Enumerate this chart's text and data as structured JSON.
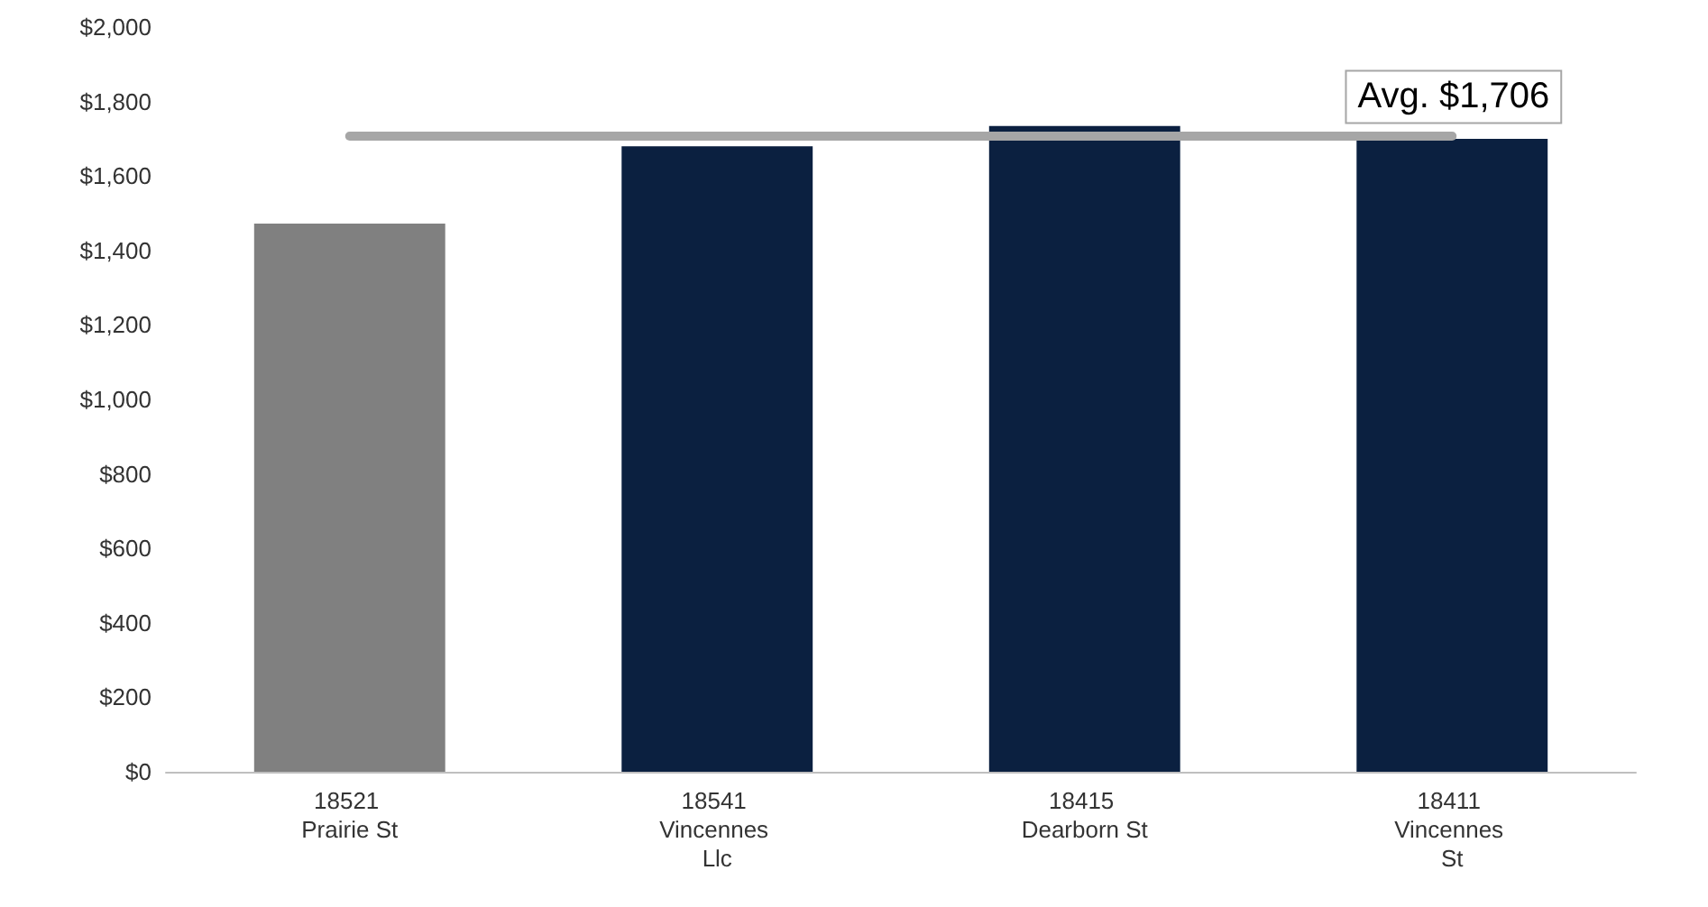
{
  "chart_data": {
    "type": "bar",
    "categories": [
      "18521 Prairie St",
      "18541 Vincennes Llc",
      "18415 Dearborn St",
      "18411 Vincennes St"
    ],
    "values": [
      1472,
      1680,
      1734,
      1700
    ],
    "colors": [
      "#808080",
      "#0b2040",
      "#0b2040",
      "#0b2040"
    ],
    "ylim": [
      0,
      2000
    ],
    "yticks": [
      {
        "value": 0,
        "label": "$0"
      },
      {
        "value": 200,
        "label": "$200"
      },
      {
        "value": 400,
        "label": "$400"
      },
      {
        "value": 600,
        "label": "$600"
      },
      {
        "value": 800,
        "label": "$800"
      },
      {
        "value": 1000,
        "label": "$1,000"
      },
      {
        "value": 1200,
        "label": "$1,200"
      },
      {
        "value": 1400,
        "label": "$1,400"
      },
      {
        "value": 1600,
        "label": "$1,600"
      },
      {
        "value": 1800,
        "label": "$1,800"
      },
      {
        "value": 2000,
        "label": "$2,000"
      }
    ],
    "grid": false,
    "ref_lines": [
      {
        "axis": "y",
        "value": 1706,
        "label": "Avg. $1,706",
        "color": "#a6a6a6",
        "line_style": "solid"
      }
    ]
  }
}
